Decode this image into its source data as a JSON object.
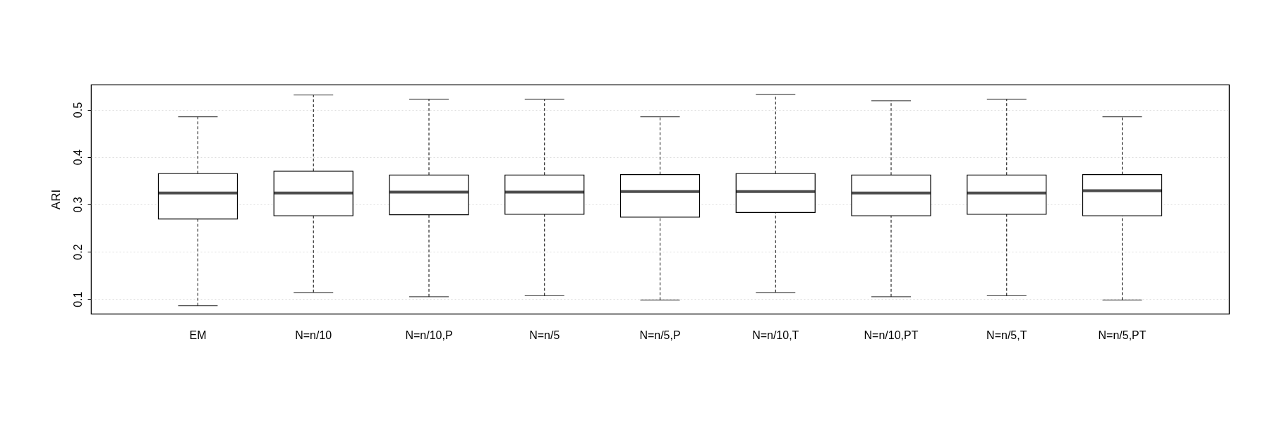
{
  "chart_data": {
    "type": "box",
    "ylabel": "ARI",
    "categories": [
      "EM",
      "N=n/10",
      "N=n/10,P",
      "N=n/5",
      "N=n/5,P",
      "N=n/10,T",
      "N=n/10,PT",
      "N=n/5,T",
      "N=n/5,PT"
    ],
    "boxes": [
      {
        "low": 0.086,
        "q1": 0.269,
        "median": 0.324,
        "q3": 0.365,
        "high": 0.485
      },
      {
        "low": 0.114,
        "q1": 0.276,
        "median": 0.324,
        "q3": 0.37,
        "high": 0.531
      },
      {
        "low": 0.105,
        "q1": 0.278,
        "median": 0.326,
        "q3": 0.362,
        "high": 0.522
      },
      {
        "low": 0.107,
        "q1": 0.279,
        "median": 0.326,
        "q3": 0.362,
        "high": 0.522
      },
      {
        "low": 0.098,
        "q1": 0.273,
        "median": 0.327,
        "q3": 0.363,
        "high": 0.485
      },
      {
        "low": 0.114,
        "q1": 0.283,
        "median": 0.327,
        "q3": 0.365,
        "high": 0.532
      },
      {
        "low": 0.105,
        "q1": 0.276,
        "median": 0.324,
        "q3": 0.362,
        "high": 0.519
      },
      {
        "low": 0.107,
        "q1": 0.279,
        "median": 0.324,
        "q3": 0.362,
        "high": 0.522
      },
      {
        "low": 0.098,
        "q1": 0.276,
        "median": 0.329,
        "q3": 0.363,
        "high": 0.485
      }
    ],
    "ylim": [
      0.069,
      0.553
    ],
    "yticks": [
      0.1,
      0.2,
      0.3,
      0.4,
      0.5
    ],
    "grid": "y"
  }
}
